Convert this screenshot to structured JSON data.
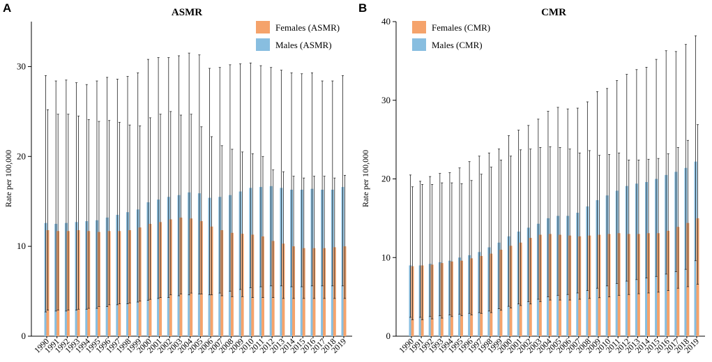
{
  "figure": {
    "panel_letters": [
      "A",
      "B"
    ]
  },
  "colors": {
    "females": "#F5A36B",
    "males": "#88BEE0",
    "error_bar": "#222222",
    "axis": "#000000"
  },
  "chart_data": [
    {
      "type": "bar",
      "panel": "A",
      "title": "ASMR",
      "xlabel": "",
      "ylabel": "Rate per 100,000",
      "ylim": [
        0,
        35
      ],
      "yticks": [
        0,
        10,
        20,
        30
      ],
      "legend_position": "top-right",
      "categories": [
        "1990",
        "1991",
        "1992",
        "1993",
        "1994",
        "1995",
        "1996",
        "1997",
        "1998",
        "1999",
        "2000",
        "2001",
        "2002",
        "2003",
        "2004",
        "2005",
        "2006",
        "2007",
        "2008",
        "2009",
        "2010",
        "2011",
        "2012",
        "2013",
        "2014",
        "2015",
        "2016",
        "2017",
        "2018",
        "2019"
      ],
      "series": [
        {
          "name": "Females (ASMR)",
          "color_key": "females",
          "values": [
            11.8,
            11.7,
            11.7,
            11.8,
            11.7,
            11.6,
            11.7,
            11.7,
            11.8,
            12.1,
            12.5,
            12.7,
            13.0,
            13.2,
            13.1,
            12.8,
            12.2,
            11.8,
            11.5,
            11.4,
            11.3,
            11.1,
            10.6,
            10.3,
            10.0,
            9.8,
            9.8,
            9.8,
            9.9,
            10.0
          ],
          "lower": [
            2.9,
            2.9,
            2.9,
            3.0,
            3.1,
            3.3,
            3.5,
            3.6,
            3.7,
            3.9,
            4.1,
            4.3,
            4.6,
            4.7,
            4.8,
            4.7,
            4.6,
            4.5,
            4.4,
            4.4,
            4.3,
            4.3,
            4.3,
            4.2,
            4.2,
            4.2,
            4.2,
            4.2,
            4.2,
            4.2
          ],
          "upper": [
            25.2,
            24.7,
            24.7,
            24.5,
            24.1,
            23.9,
            24.0,
            23.8,
            23.5,
            23.4,
            24.3,
            24.7,
            25.0,
            24.6,
            24.7,
            23.3,
            22.2,
            21.2,
            20.8,
            20.5,
            20.3,
            20.0,
            18.5,
            18.3,
            17.8,
            17.6,
            17.8,
            17.8,
            17.6,
            17.9
          ]
        },
        {
          "name": "Males (ASMR)",
          "color_key": "males",
          "values": [
            12.6,
            12.5,
            12.6,
            12.7,
            12.8,
            12.9,
            13.2,
            13.5,
            13.8,
            14.1,
            14.9,
            15.2,
            15.5,
            15.7,
            16.0,
            15.9,
            15.4,
            15.5,
            15.7,
            16.1,
            16.5,
            16.6,
            16.7,
            16.5,
            16.3,
            16.3,
            16.4,
            16.3,
            16.3,
            16.6
          ],
          "lower": [
            2.7,
            2.8,
            2.8,
            2.9,
            3.0,
            3.1,
            3.3,
            3.5,
            3.6,
            3.8,
            4.0,
            4.2,
            4.3,
            4.5,
            4.6,
            4.7,
            4.6,
            4.8,
            5.0,
            5.2,
            5.4,
            5.5,
            5.6,
            5.6,
            5.5,
            5.5,
            5.6,
            5.6,
            5.6,
            5.6
          ],
          "upper": [
            29.0,
            28.4,
            28.5,
            28.2,
            28.0,
            28.4,
            28.8,
            28.6,
            28.9,
            29.3,
            30.8,
            31.0,
            31.0,
            31.2,
            31.5,
            31.3,
            29.8,
            29.9,
            30.2,
            30.3,
            30.4,
            30.1,
            29.9,
            29.6,
            29.3,
            29.2,
            29.3,
            28.4,
            28.4,
            29.0
          ]
        }
      ]
    },
    {
      "type": "bar",
      "panel": "B",
      "title": "CMR",
      "xlabel": "",
      "ylabel": "Rate per 100,000",
      "ylim": [
        0,
        40
      ],
      "yticks": [
        0,
        10,
        20,
        30,
        40
      ],
      "legend_position": "top-left",
      "categories": [
        "1990",
        "1991",
        "1992",
        "1993",
        "1994",
        "1995",
        "1996",
        "1997",
        "1998",
        "1999",
        "2000",
        "2001",
        "2002",
        "2003",
        "2004",
        "2005",
        "2006",
        "2007",
        "2008",
        "2009",
        "2010",
        "2011",
        "2012",
        "2013",
        "2014",
        "2015",
        "2016",
        "2017",
        "2018",
        "2019"
      ],
      "series": [
        {
          "name": "Females (CMR)",
          "color_key": "females",
          "values": [
            8.9,
            9.0,
            9.1,
            9.3,
            9.5,
            9.6,
            9.9,
            10.2,
            10.5,
            11.0,
            11.5,
            11.9,
            12.5,
            12.9,
            13.0,
            12.9,
            12.8,
            12.7,
            12.8,
            12.9,
            13.0,
            13.1,
            13.0,
            13.0,
            13.1,
            13.1,
            13.4,
            13.9,
            14.4,
            15.0
          ],
          "lower": [
            2.1,
            2.1,
            2.2,
            2.3,
            2.5,
            2.6,
            2.7,
            2.9,
            3.0,
            3.3,
            3.6,
            3.9,
            4.1,
            4.4,
            4.6,
            4.6,
            4.6,
            4.7,
            4.8,
            4.9,
            5.0,
            5.2,
            5.3,
            5.4,
            5.5,
            5.6,
            5.8,
            6.1,
            6.3,
            6.6
          ],
          "upper": [
            19.0,
            19.3,
            19.3,
            19.5,
            19.5,
            19.4,
            19.8,
            20.6,
            21.5,
            22.4,
            22.9,
            23.7,
            23.8,
            24.0,
            24.1,
            24.0,
            23.8,
            23.3,
            23.6,
            23.0,
            23.1,
            23.3,
            22.4,
            22.4,
            22.5,
            22.6,
            23.2,
            24.0,
            24.9,
            26.9
          ]
        },
        {
          "name": "Males (CMR)",
          "color_key": "males",
          "values": [
            9.0,
            9.0,
            9.2,
            9.4,
            9.6,
            10.0,
            10.3,
            10.7,
            11.3,
            11.9,
            12.7,
            13.3,
            13.8,
            14.3,
            15.0,
            15.3,
            15.3,
            15.7,
            16.5,
            17.3,
            17.9,
            18.5,
            19.1,
            19.4,
            19.6,
            20.0,
            20.5,
            20.9,
            21.4,
            22.2
          ],
          "lower": [
            2.4,
            2.4,
            2.5,
            2.6,
            2.7,
            2.8,
            2.9,
            3.0,
            3.2,
            3.5,
            3.8,
            4.1,
            4.4,
            4.7,
            5.0,
            5.2,
            5.3,
            5.5,
            5.8,
            6.1,
            6.4,
            6.7,
            7.0,
            7.2,
            7.4,
            7.6,
            7.9,
            8.2,
            8.5,
            9.6
          ],
          "upper": [
            20.5,
            19.7,
            20.3,
            20.7,
            20.8,
            21.4,
            22.2,
            22.9,
            23.3,
            23.8,
            25.5,
            26.2,
            26.8,
            27.6,
            28.6,
            29.1,
            28.9,
            29.0,
            29.8,
            31.1,
            31.5,
            32.5,
            33.3,
            33.9,
            34.2,
            35.2,
            36.3,
            36.2,
            37.1,
            38.2
          ]
        }
      ]
    }
  ]
}
